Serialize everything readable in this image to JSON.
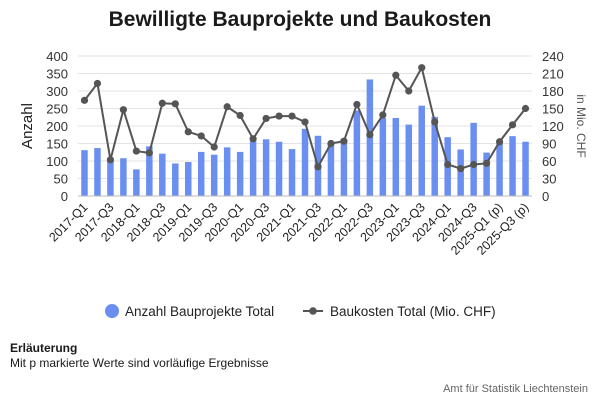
{
  "chart_data": {
    "type": "bar",
    "title": "Bewilligte Bauprojekte und Baukosten",
    "ylabel": "Anzahl",
    "y2label": "in Mio. CHF",
    "ylim": [
      0,
      400
    ],
    "y2lim": [
      0,
      240
    ],
    "yticks": [
      0,
      50,
      100,
      150,
      200,
      250,
      300,
      350,
      400
    ],
    "y2ticks": [
      0,
      30,
      60,
      90,
      120,
      150,
      180,
      210,
      240
    ],
    "grid": true,
    "legend_position": "bottom",
    "categories": [
      "2017-Q1",
      "2017-Q2",
      "2017-Q3",
      "2017-Q4",
      "2018-Q1",
      "2018-Q2",
      "2018-Q3",
      "2018-Q4",
      "2019-Q1",
      "2019-Q2",
      "2019-Q3",
      "2019-Q4",
      "2020-Q1",
      "2020-Q2",
      "2020-Q3",
      "2020-Q4",
      "2021-Q1",
      "2021-Q2",
      "2021-Q3",
      "2021-Q4",
      "2022-Q1",
      "2022-Q2",
      "2022-Q3",
      "2022-Q4",
      "2023-Q1",
      "2023-Q2",
      "2023-Q3",
      "2023-Q4",
      "2024-Q1",
      "2024-Q2",
      "2024-Q3",
      "2024-Q4",
      "2025-Q1 (p)",
      "2025-Q2 (p)",
      "2025-Q3 (p)"
    ],
    "tick_labels": [
      "2017-Q1",
      "2017-Q3",
      "2018-Q1",
      "2018-Q3",
      "2019-Q1",
      "2019-Q3",
      "2020-Q1",
      "2020-Q3",
      "2021-Q1",
      "2021-Q3",
      "2022-Q1",
      "2022-Q3",
      "2023-Q1",
      "2023-Q3",
      "2024-Q1",
      "2024-Q3",
      "2025-Q1 (p)",
      "2025-Q3 (p)"
    ],
    "series": [
      {
        "name": "Anzahl Bauprojekte Total",
        "type": "bar",
        "axis": "left",
        "color": "#6b8ff0",
        "values": [
          131,
          137,
          106,
          108,
          76,
          142,
          121,
          93,
          97,
          126,
          118,
          139,
          126,
          157,
          162,
          155,
          134,
          192,
          172,
          154,
          163,
          244,
          333,
          223,
          223,
          204,
          258,
          226,
          168,
          133,
          209,
          124,
          156,
          171,
          155
        ]
      },
      {
        "name": "Baukosten Total (Mio. CHF)",
        "type": "line",
        "axis": "right",
        "color": "#555555",
        "values": [
          164,
          193,
          62,
          148,
          77,
          74,
          159,
          158,
          110,
          103,
          84,
          153,
          138,
          98,
          133,
          137,
          137,
          127,
          50,
          90,
          94,
          157,
          105,
          139,
          207,
          180,
          220,
          127,
          54,
          47,
          54,
          56,
          93,
          122,
          150
        ]
      }
    ]
  },
  "note": {
    "title": "Erläuterung",
    "text": "Mit p markierte Werte sind vorläufige Ergebnisse"
  },
  "source": "Amt für Statistik Liechtenstein"
}
